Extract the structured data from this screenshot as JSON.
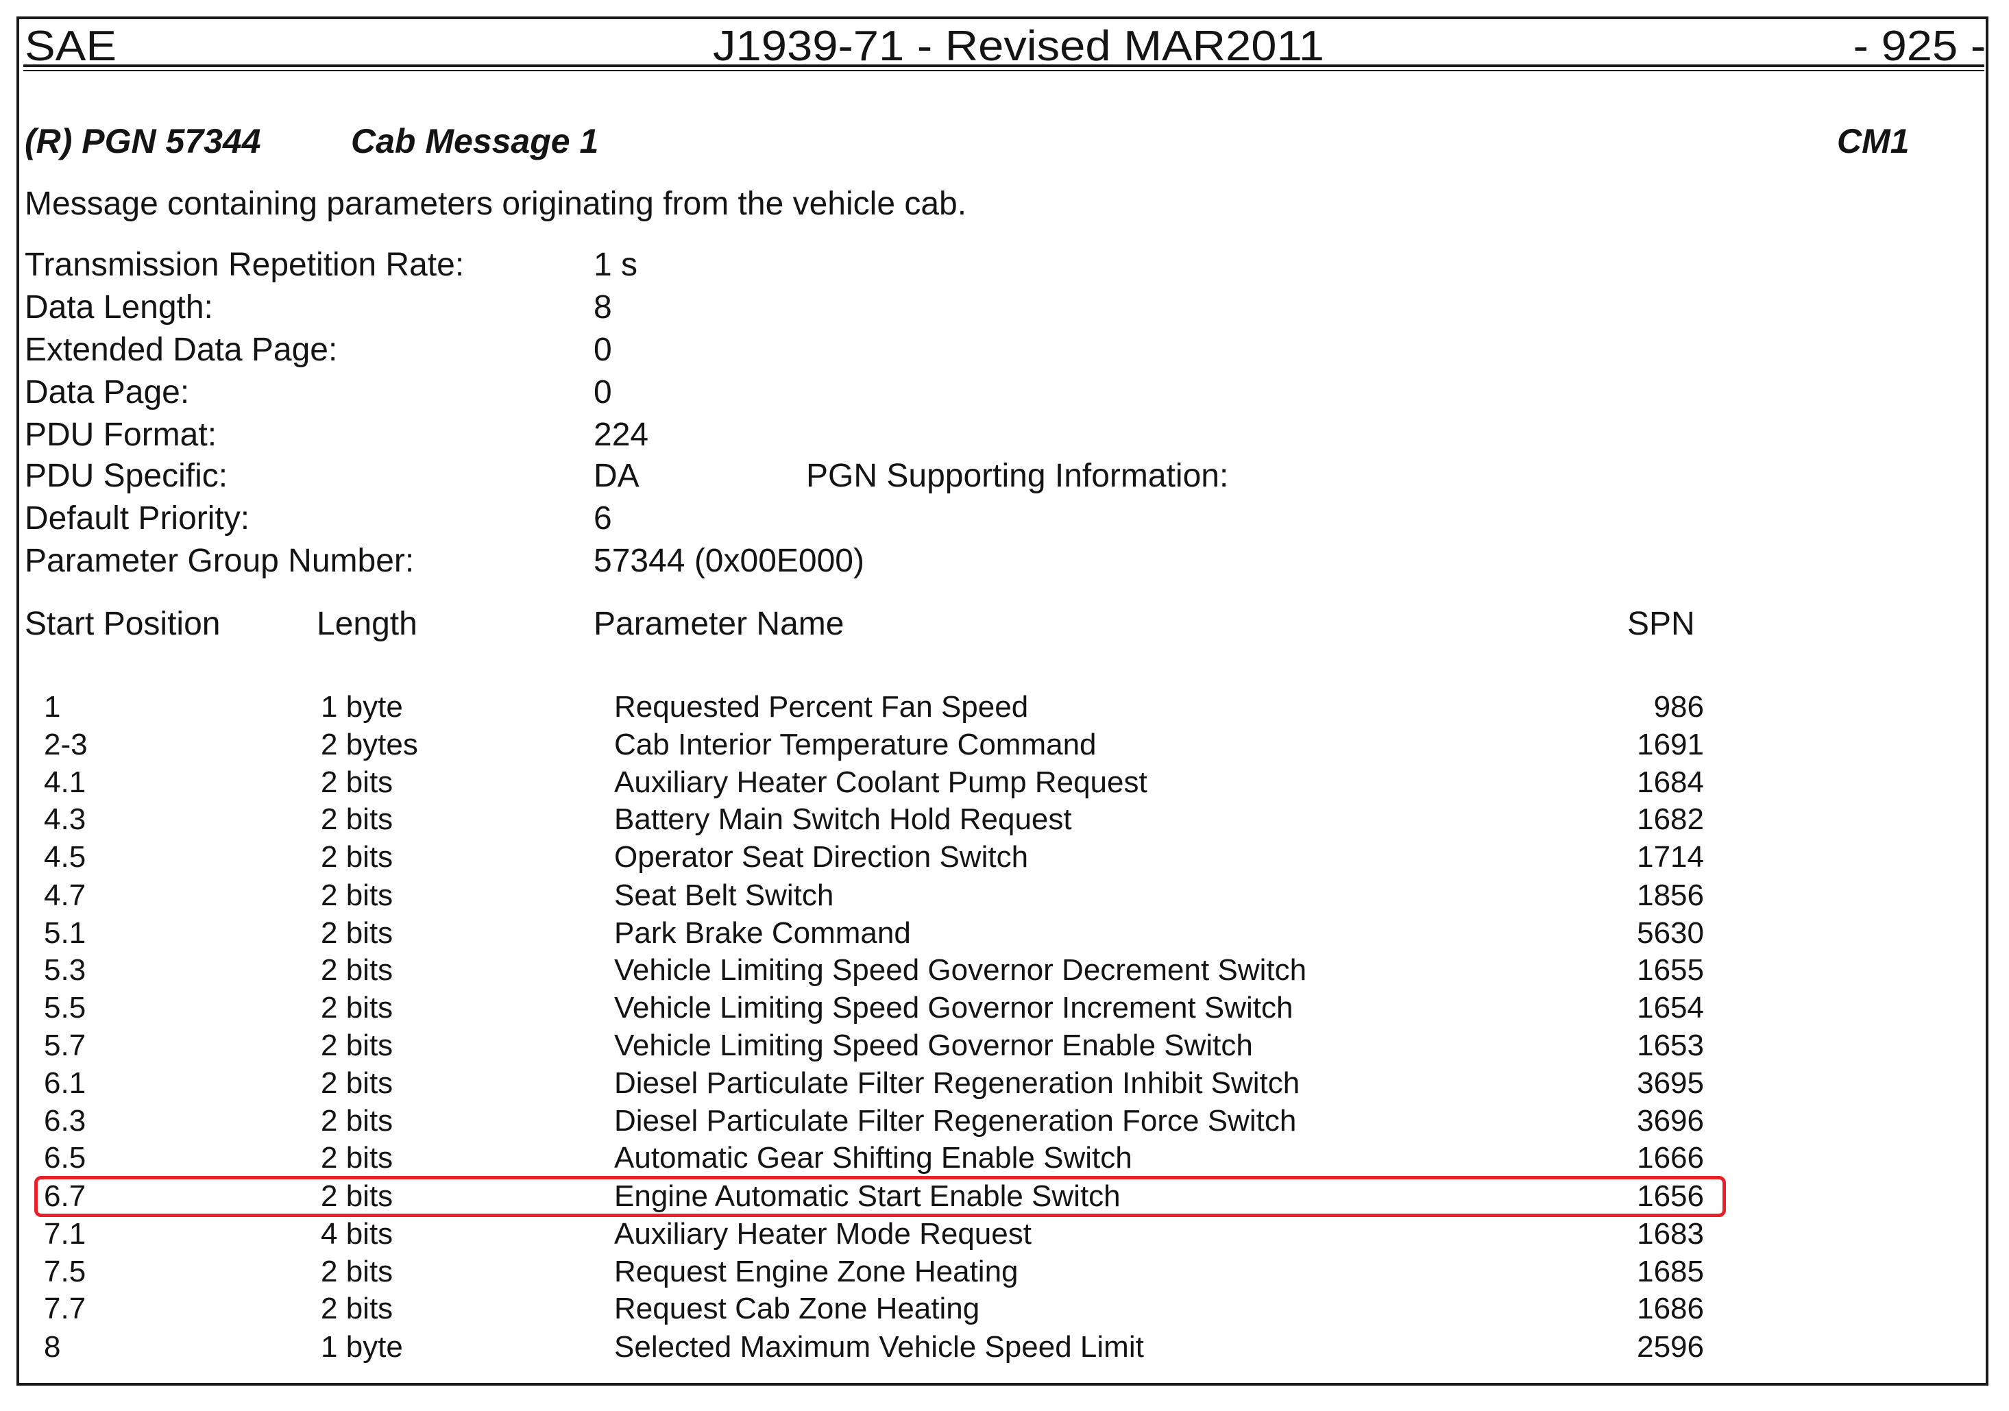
{
  "header": {
    "left": "SAE",
    "center": "J1939-71 - Revised MAR2011",
    "right": "- 925 -"
  },
  "pgn": {
    "id": "(R) PGN 57344",
    "name": "Cab Message 1",
    "acronym": "CM1",
    "description": "Message containing parameters originating from the vehicle cab."
  },
  "attributes": [
    {
      "label": "Transmission Repetition Rate:",
      "value": "1 s"
    },
    {
      "label": "Data Length:",
      "value": "8"
    },
    {
      "label": "Extended Data Page:",
      "value": "0"
    },
    {
      "label": "Data Page:",
      "value": "0"
    },
    {
      "label": "PDU Format:",
      "value": "224"
    },
    {
      "label": "PDU Specific:",
      "value": "DA"
    },
    {
      "label": "Default Priority:",
      "value": "6"
    },
    {
      "label": "Parameter Group Number:",
      "value": "57344  (0x00E000)"
    }
  ],
  "supporting_info_label": "PGN Supporting Information:",
  "table": {
    "headers": {
      "start": "Start Position",
      "length": "Length",
      "name": "Parameter Name",
      "spn": "SPN"
    },
    "rows": [
      {
        "start": "1",
        "length": "1 byte",
        "name": "Requested Percent Fan Speed",
        "spn": "986"
      },
      {
        "start": "2-3",
        "length": "2 bytes",
        "name": "Cab Interior Temperature Command",
        "spn": "1691"
      },
      {
        "start": "4.1",
        "length": "2 bits",
        "name": "Auxiliary Heater Coolant Pump Request",
        "spn": "1684"
      },
      {
        "start": "4.3",
        "length": "2 bits",
        "name": "Battery Main Switch Hold Request",
        "spn": "1682"
      },
      {
        "start": "4.5",
        "length": "2 bits",
        "name": "Operator Seat Direction Switch",
        "spn": "1714"
      },
      {
        "start": "4.7",
        "length": "2 bits",
        "name": "Seat Belt Switch",
        "spn": "1856"
      },
      {
        "start": "5.1",
        "length": "2 bits",
        "name": "Park Brake Command",
        "spn": "5630"
      },
      {
        "start": "5.3",
        "length": "2 bits",
        "name": "Vehicle Limiting Speed Governor Decrement Switch",
        "spn": "1655"
      },
      {
        "start": "5.5",
        "length": "2 bits",
        "name": "Vehicle Limiting Speed Governor Increment Switch",
        "spn": "1654"
      },
      {
        "start": "5.7",
        "length": "2 bits",
        "name": "Vehicle Limiting Speed Governor Enable Switch",
        "spn": "1653"
      },
      {
        "start": "6.1",
        "length": "2 bits",
        "name": "Diesel Particulate Filter Regeneration Inhibit Switch",
        "spn": "3695"
      },
      {
        "start": "6.3",
        "length": "2 bits",
        "name": "Diesel Particulate Filter Regeneration Force Switch",
        "spn": "3696"
      },
      {
        "start": "6.5",
        "length": "2 bits",
        "name": "Automatic Gear Shifting Enable Switch",
        "spn": "1666"
      },
      {
        "start": "6.7",
        "length": "2 bits",
        "name": "Engine Automatic Start Enable Switch",
        "spn": "1656"
      },
      {
        "start": "7.1",
        "length": "4 bits",
        "name": "Auxiliary Heater Mode Request",
        "spn": "1683"
      },
      {
        "start": "7.5",
        "length": "2 bits",
        "name": "Request Engine Zone Heating",
        "spn": "1685"
      },
      {
        "start": "7.7",
        "length": "2 bits",
        "name": "Request Cab Zone Heating",
        "spn": "1686"
      },
      {
        "start": "8",
        "length": "1 byte",
        "name": "Selected Maximum Vehicle Speed Limit",
        "spn": "2596"
      }
    ],
    "highlighted_row": 13
  },
  "colors": {
    "text": "#141414",
    "frame": "#1a1a1a",
    "highlight": "#e8202a"
  }
}
